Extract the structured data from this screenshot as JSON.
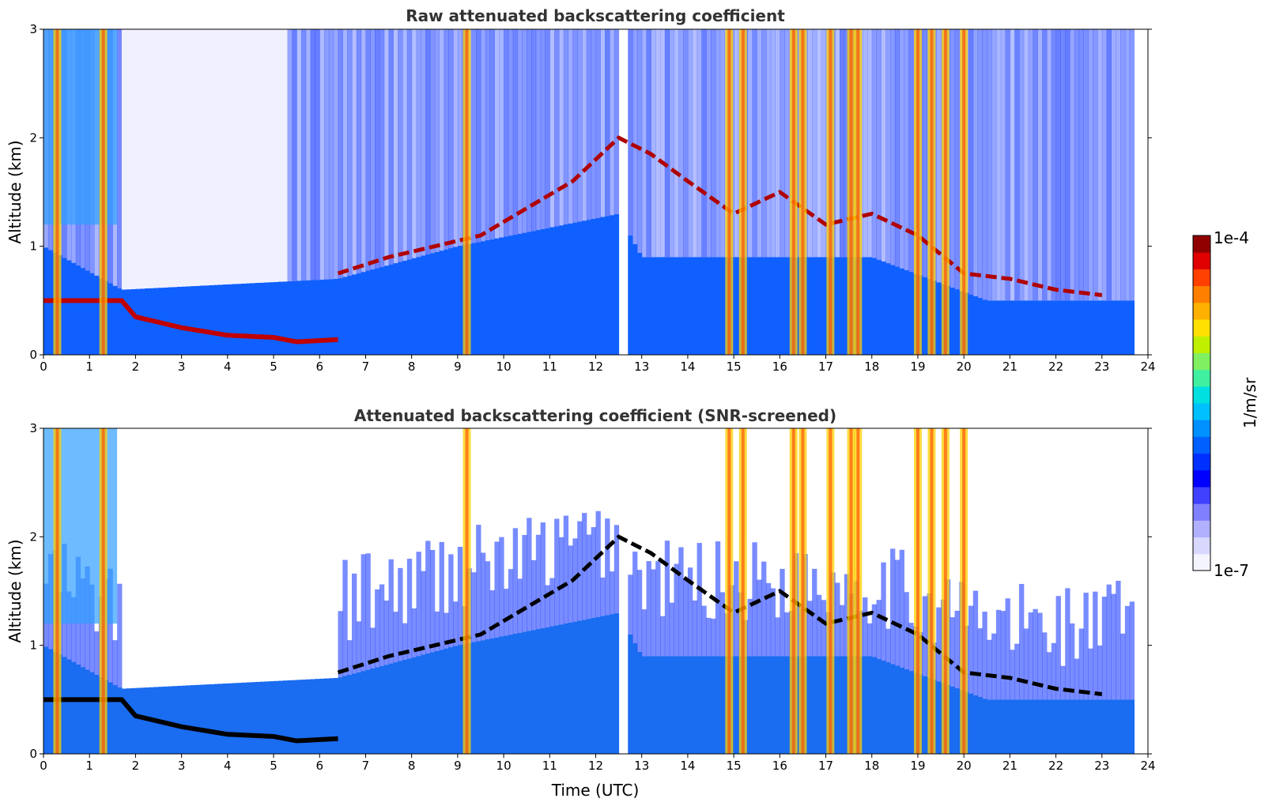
{
  "chart_data": [
    {
      "type": "heatmap",
      "title": "Raw attenuated backscattering coefficient",
      "xlabel": "",
      "ylabel": "Altitude (km)",
      "xlim": [
        0,
        24
      ],
      "ylim": [
        0,
        3
      ],
      "x_ticks": [
        "0",
        "1",
        "2",
        "3",
        "4",
        "5",
        "6",
        "7",
        "8",
        "9",
        "10",
        "11",
        "12",
        "13",
        "14",
        "15",
        "16",
        "17",
        "18",
        "19",
        "20",
        "21",
        "22",
        "23",
        "24"
      ],
      "y_ticks": [
        "0",
        "1",
        "2",
        "3"
      ],
      "data_gap": [
        12.55,
        12.7
      ],
      "noise_cut_km_by_hour": [
        [
          0,
          1.0
        ],
        [
          1.7,
          0.6
        ],
        [
          6.4,
          0.7
        ],
        [
          9,
          1.0
        ],
        [
          12.5,
          1.3
        ],
        [
          13,
          0.9
        ],
        [
          18,
          0.9
        ],
        [
          20.5,
          0.5
        ],
        [
          23.7,
          0.5
        ]
      ],
      "ground_layer": [
        [
          0,
          0.5
        ],
        [
          1.7,
          0.5
        ],
        [
          2,
          0.35
        ],
        [
          3,
          0.25
        ],
        [
          4,
          0.18
        ],
        [
          5,
          0.16
        ],
        [
          5.5,
          0.12
        ],
        [
          6.4,
          0.14
        ]
      ],
      "cloud_base_layer": [
        [
          6.4,
          0.75
        ],
        [
          7.5,
          0.9
        ],
        [
          8.5,
          1.0
        ],
        [
          9.5,
          1.1
        ],
        [
          10.5,
          1.35
        ],
        [
          11.5,
          1.6
        ],
        [
          12.5,
          2.0
        ],
        [
          13.2,
          1.85
        ],
        [
          14,
          1.6
        ],
        [
          15,
          1.3
        ],
        [
          16,
          1.5
        ],
        [
          17,
          1.2
        ],
        [
          18,
          1.3
        ],
        [
          19,
          1.1
        ],
        [
          20,
          0.75
        ],
        [
          21,
          0.7
        ],
        [
          22,
          0.6
        ],
        [
          23,
          0.55
        ]
      ],
      "vertical_plumes_hour": [
        0.3,
        1.3,
        9.2,
        14.9,
        15.2,
        16.3,
        16.5,
        17.1,
        17.55,
        17.7,
        19.0,
        19.3,
        19.6,
        20.0
      ]
    },
    {
      "type": "heatmap",
      "title": "Attenuated backscattering coefficient (SNR-screened)",
      "xlabel": "Time (UTC)",
      "ylabel": "Altitude (km)",
      "xlim": [
        0,
        24
      ],
      "ylim": [
        0,
        3
      ],
      "x_ticks": [
        "0",
        "1",
        "2",
        "3",
        "4",
        "5",
        "6",
        "7",
        "8",
        "9",
        "10",
        "11",
        "12",
        "13",
        "14",
        "15",
        "16",
        "17",
        "18",
        "19",
        "20",
        "21",
        "22",
        "23",
        "24"
      ],
      "y_ticks": [
        "0",
        "1",
        "2",
        "3"
      ],
      "data_gap": [
        12.55,
        12.7
      ]
    }
  ],
  "colorbar": {
    "label": "1/m/sr",
    "max_label": "1e-4",
    "min_label": "1e-7",
    "scale": "log",
    "colors": [
      "#f4f4ff",
      "#d8d8ff",
      "#b0b0ff",
      "#8080ff",
      "#4040ff",
      "#0000ff",
      "#0030ff",
      "#0060ff",
      "#0090ff",
      "#00c0ff",
      "#00e0e0",
      "#40f0a0",
      "#80f060",
      "#c0f000",
      "#ffe000",
      "#ffb000",
      "#ff8000",
      "#ff4000",
      "#e00000",
      "#900000"
    ]
  }
}
